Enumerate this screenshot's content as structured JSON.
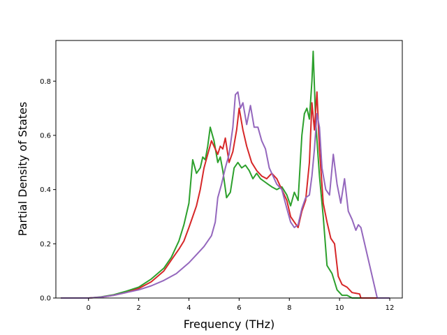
{
  "chart_data": {
    "type": "line",
    "title": "",
    "xlabel": "Frequency (THz)",
    "ylabel": "Partial Density of States",
    "xlim": [
      -1.3,
      12.5
    ],
    "ylim": [
      0.0,
      0.95
    ],
    "grid": false,
    "legend": "none",
    "xticks": [
      0,
      2,
      4,
      6,
      8,
      10,
      12
    ],
    "yticks": [
      0.0,
      0.2,
      0.4,
      0.6,
      0.8
    ],
    "xtick_labels": [
      "0",
      "2",
      "4",
      "6",
      "8",
      "10",
      "12"
    ],
    "ytick_labels": [
      "0.0",
      "0.2",
      "0.4",
      "0.6",
      "0.8"
    ],
    "series": [
      {
        "color": "#2ca02c",
        "x": [
          -1.1,
          0.0,
          0.5,
          1.0,
          1.5,
          2.0,
          2.5,
          3.0,
          3.3,
          3.6,
          3.8,
          4.0,
          4.15,
          4.3,
          4.45,
          4.55,
          4.65,
          4.75,
          4.85,
          5.0,
          5.15,
          5.25,
          5.35,
          5.5,
          5.65,
          5.8,
          5.95,
          6.1,
          6.25,
          6.4,
          6.55,
          6.7,
          6.85,
          7.0,
          7.15,
          7.3,
          7.5,
          7.7,
          7.9,
          8.05,
          8.2,
          8.35,
          8.5,
          8.6,
          8.7,
          8.8,
          8.9,
          8.95,
          9.05,
          9.2,
          9.35,
          9.5,
          9.7,
          9.9,
          10.1,
          10.3,
          10.5,
          10.8,
          11.5,
          12.0
        ],
        "y": [
          0.0,
          0.0,
          0.004,
          0.012,
          0.025,
          0.04,
          0.07,
          0.11,
          0.15,
          0.21,
          0.27,
          0.35,
          0.51,
          0.46,
          0.48,
          0.52,
          0.51,
          0.56,
          0.63,
          0.58,
          0.5,
          0.52,
          0.47,
          0.37,
          0.39,
          0.48,
          0.5,
          0.48,
          0.49,
          0.47,
          0.44,
          0.46,
          0.44,
          0.43,
          0.42,
          0.41,
          0.4,
          0.41,
          0.38,
          0.34,
          0.39,
          0.36,
          0.6,
          0.68,
          0.7,
          0.66,
          0.8,
          0.91,
          0.65,
          0.45,
          0.3,
          0.12,
          0.09,
          0.03,
          0.01,
          0.01,
          0.0,
          0.0,
          0.0,
          0.0
        ]
      },
      {
        "color": "#d62728",
        "x": [
          -1.1,
          0.0,
          0.5,
          1.0,
          1.5,
          2.0,
          2.5,
          3.0,
          3.3,
          3.6,
          3.8,
          4.0,
          4.15,
          4.3,
          4.45,
          4.6,
          4.75,
          4.9,
          5.05,
          5.15,
          5.25,
          5.35,
          5.45,
          5.6,
          5.75,
          5.9,
          6.0,
          6.15,
          6.3,
          6.5,
          6.7,
          6.9,
          7.1,
          7.3,
          7.5,
          7.7,
          7.9,
          8.05,
          8.2,
          8.35,
          8.5,
          8.65,
          8.8,
          8.9,
          9.0,
          9.1,
          9.2,
          9.35,
          9.5,
          9.65,
          9.8,
          9.95,
          10.1,
          10.3,
          10.5,
          10.8,
          10.85,
          11.5,
          12.0
        ],
        "y": [
          0.0,
          0.0,
          0.003,
          0.01,
          0.02,
          0.035,
          0.06,
          0.1,
          0.14,
          0.18,
          0.21,
          0.26,
          0.3,
          0.34,
          0.4,
          0.48,
          0.53,
          0.58,
          0.55,
          0.53,
          0.56,
          0.55,
          0.59,
          0.5,
          0.54,
          0.62,
          0.7,
          0.62,
          0.56,
          0.5,
          0.47,
          0.45,
          0.44,
          0.46,
          0.44,
          0.4,
          0.36,
          0.3,
          0.28,
          0.26,
          0.32,
          0.36,
          0.5,
          0.72,
          0.62,
          0.76,
          0.55,
          0.35,
          0.28,
          0.22,
          0.2,
          0.08,
          0.05,
          0.04,
          0.02,
          0.015,
          0.0,
          0.0,
          0.0
        ]
      },
      {
        "color": "#9467bd",
        "x": [
          -1.1,
          0.0,
          0.5,
          1.0,
          1.5,
          2.0,
          2.5,
          3.0,
          3.5,
          4.0,
          4.3,
          4.6,
          4.9,
          5.05,
          5.15,
          5.3,
          5.45,
          5.6,
          5.75,
          5.85,
          5.95,
          6.05,
          6.15,
          6.3,
          6.45,
          6.6,
          6.75,
          6.9,
          7.05,
          7.2,
          7.35,
          7.5,
          7.7,
          7.9,
          8.05,
          8.2,
          8.35,
          8.5,
          8.65,
          8.8,
          8.9,
          9.0,
          9.1,
          9.2,
          9.3,
          9.45,
          9.6,
          9.75,
          9.9,
          10.05,
          10.2,
          10.35,
          10.5,
          10.65,
          10.75,
          10.85,
          11.5,
          12.0
        ],
        "y": [
          0.0,
          0.0,
          0.003,
          0.01,
          0.02,
          0.03,
          0.045,
          0.065,
          0.09,
          0.13,
          0.16,
          0.19,
          0.23,
          0.28,
          0.37,
          0.42,
          0.48,
          0.53,
          0.63,
          0.75,
          0.76,
          0.7,
          0.72,
          0.64,
          0.71,
          0.63,
          0.63,
          0.58,
          0.55,
          0.48,
          0.45,
          0.42,
          0.4,
          0.33,
          0.28,
          0.26,
          0.27,
          0.33,
          0.37,
          0.38,
          0.45,
          0.55,
          0.68,
          0.63,
          0.48,
          0.4,
          0.38,
          0.53,
          0.42,
          0.35,
          0.44,
          0.32,
          0.29,
          0.25,
          0.27,
          0.26,
          0.0,
          0.0
        ]
      }
    ]
  }
}
